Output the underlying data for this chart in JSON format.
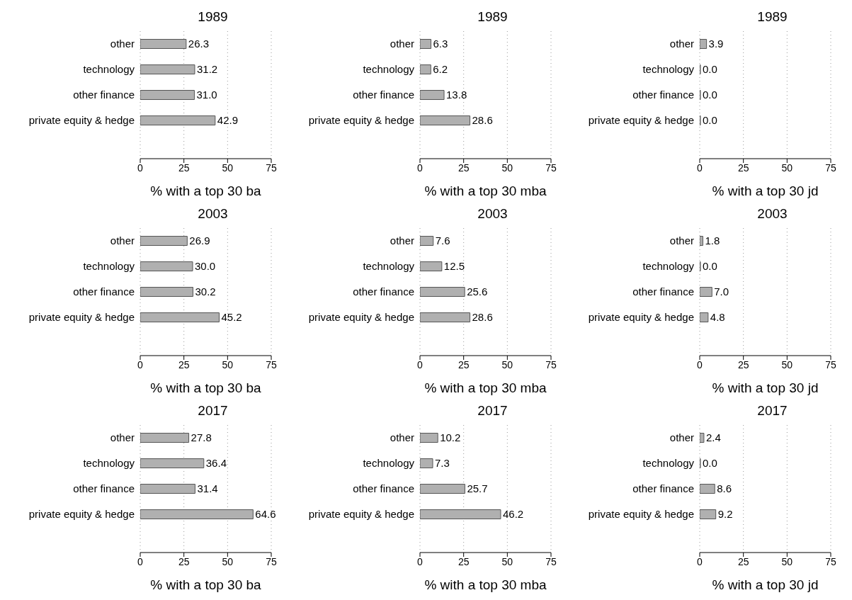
{
  "chart_data": [
    {
      "type": "bar",
      "orientation": "horizontal",
      "title": "1989",
      "xlabel": "% with a top 30 ba",
      "categories": [
        "other",
        "technology",
        "other finance",
        "private equity & hedge"
      ],
      "values": [
        26.3,
        31.2,
        31.0,
        42.9
      ],
      "value_labels": [
        "26.3",
        "31.2",
        "31.0",
        "42.9"
      ],
      "color": "#b0b0b0",
      "xlim": [
        0,
        75
      ],
      "xticks": [
        0,
        25,
        50,
        75
      ],
      "grid": "x"
    },
    {
      "type": "bar",
      "orientation": "horizontal",
      "title": "1989",
      "xlabel": "% with a top 30 mba",
      "categories": [
        "other",
        "technology",
        "other finance",
        "private equity & hedge"
      ],
      "values": [
        6.3,
        6.2,
        13.8,
        28.6
      ],
      "value_labels": [
        "6.3",
        "6.2",
        "13.8",
        "28.6"
      ],
      "color": "#b0b0b0",
      "xlim": [
        0,
        75
      ],
      "xticks": [
        0,
        25,
        50,
        75
      ],
      "grid": "x"
    },
    {
      "type": "bar",
      "orientation": "horizontal",
      "title": "1989",
      "xlabel": "% with a top 30 jd",
      "categories": [
        "other",
        "technology",
        "other finance",
        "private equity & hedge"
      ],
      "values": [
        3.9,
        0.0,
        0.0,
        0.0
      ],
      "value_labels": [
        "3.9",
        "0.0",
        "0.0",
        "0.0"
      ],
      "color": "#b0b0b0",
      "xlim": [
        0,
        75
      ],
      "xticks": [
        0,
        25,
        50,
        75
      ],
      "grid": "x"
    },
    {
      "type": "bar",
      "orientation": "horizontal",
      "title": "2003",
      "xlabel": "% with a top 30 ba",
      "categories": [
        "other",
        "technology",
        "other finance",
        "private equity & hedge"
      ],
      "values": [
        26.9,
        30.0,
        30.2,
        45.2
      ],
      "value_labels": [
        "26.9",
        "30.0",
        "30.2",
        "45.2"
      ],
      "color": "#b0b0b0",
      "xlim": [
        0,
        75
      ],
      "xticks": [
        0,
        25,
        50,
        75
      ],
      "grid": "x"
    },
    {
      "type": "bar",
      "orientation": "horizontal",
      "title": "2003",
      "xlabel": "% with a top 30 mba",
      "categories": [
        "other",
        "technology",
        "other finance",
        "private equity & hedge"
      ],
      "values": [
        7.6,
        12.5,
        25.6,
        28.6
      ],
      "value_labels": [
        "7.6",
        "12.5",
        "25.6",
        "28.6"
      ],
      "color": "#b0b0b0",
      "xlim": [
        0,
        75
      ],
      "xticks": [
        0,
        25,
        50,
        75
      ],
      "grid": "x"
    },
    {
      "type": "bar",
      "orientation": "horizontal",
      "title": "2003",
      "xlabel": "% with a top 30 jd",
      "categories": [
        "other",
        "technology",
        "other finance",
        "private equity & hedge"
      ],
      "values": [
        1.8,
        0.0,
        7.0,
        4.8
      ],
      "value_labels": [
        "1.8",
        "0.0",
        "7.0",
        "4.8"
      ],
      "color": "#b0b0b0",
      "xlim": [
        0,
        75
      ],
      "xticks": [
        0,
        25,
        50,
        75
      ],
      "grid": "x"
    },
    {
      "type": "bar",
      "orientation": "horizontal",
      "title": "2017",
      "xlabel": "% with a top 30 ba",
      "categories": [
        "other",
        "technology",
        "other finance",
        "private equity & hedge"
      ],
      "values": [
        27.8,
        36.4,
        31.4,
        64.6
      ],
      "value_labels": [
        "27.8",
        "36.4",
        "31.4",
        "64.6"
      ],
      "color": "#b0b0b0",
      "xlim": [
        0,
        75
      ],
      "xticks": [
        0,
        25,
        50,
        75
      ],
      "grid": "x"
    },
    {
      "type": "bar",
      "orientation": "horizontal",
      "title": "2017",
      "xlabel": "% with a top 30 mba",
      "categories": [
        "other",
        "technology",
        "other finance",
        "private equity & hedge"
      ],
      "values": [
        10.2,
        7.3,
        25.7,
        46.2
      ],
      "value_labels": [
        "10.2",
        "7.3",
        "25.7",
        "46.2"
      ],
      "color": "#b0b0b0",
      "xlim": [
        0,
        75
      ],
      "xticks": [
        0,
        25,
        50,
        75
      ],
      "grid": "x"
    },
    {
      "type": "bar",
      "orientation": "horizontal",
      "title": "2017",
      "xlabel": "% with a top 30 jd",
      "categories": [
        "other",
        "technology",
        "other finance",
        "private equity & hedge"
      ],
      "values": [
        2.4,
        0.0,
        8.6,
        9.2
      ],
      "value_labels": [
        "2.4",
        "0.0",
        "8.6",
        "9.2"
      ],
      "color": "#b0b0b0",
      "xlim": [
        0,
        75
      ],
      "xticks": [
        0,
        25,
        50,
        75
      ],
      "grid": "x"
    }
  ]
}
